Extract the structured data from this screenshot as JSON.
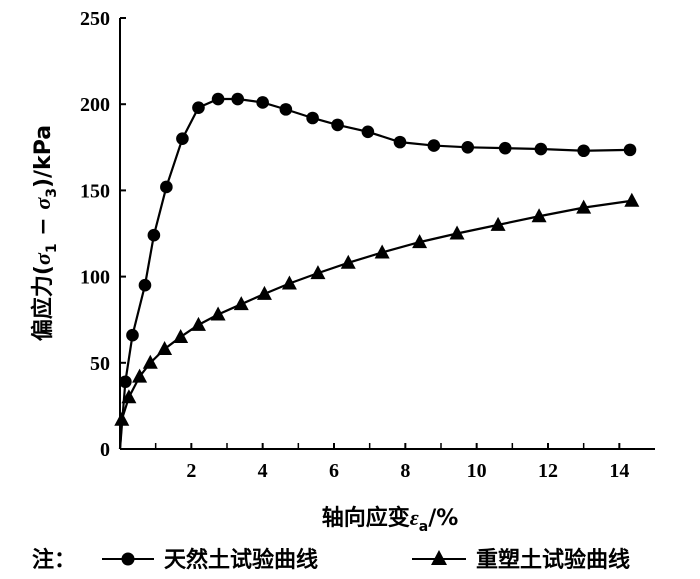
{
  "chart_data": {
    "type": "line",
    "xlabel": "轴向应变ε_a/%",
    "ylabel": "偏应力(σ_1 - σ_3)/kPa",
    "xlim": [
      0,
      15
    ],
    "ylim": [
      0,
      250
    ],
    "x_ticks": [
      "2",
      "4",
      "6",
      "8",
      "10",
      "12",
      "14"
    ],
    "y_ticks": [
      "0",
      "50",
      "100",
      "150",
      "200",
      "250"
    ],
    "grid": false,
    "series": [
      {
        "name": "天然土试验曲线",
        "marker": "circle",
        "color": "#000000",
        "x": [
          0,
          0.15,
          0.35,
          0.7,
          0.95,
          1.3,
          1.75,
          2.2,
          2.75,
          3.3,
          4.0,
          4.65,
          5.4,
          6.1,
          6.95,
          7.85,
          8.8,
          9.75,
          10.8,
          11.8,
          13.0,
          14.3
        ],
        "y": [
          0,
          39,
          66,
          95,
          124,
          152,
          180,
          198,
          203,
          203,
          201,
          197,
          192,
          188,
          184,
          178,
          176,
          175,
          174.5,
          174,
          173,
          173.5
        ]
      },
      {
        "name": "重塑土试验曲线",
        "marker": "triangle",
        "color": "#000000",
        "x": [
          0,
          0.05,
          0.25,
          0.55,
          0.85,
          1.25,
          1.7,
          2.2,
          2.75,
          3.4,
          4.05,
          4.75,
          5.55,
          6.4,
          7.35,
          8.4,
          9.45,
          10.6,
          11.75,
          13.0,
          14.35
        ],
        "y": [
          0,
          17,
          30,
          42,
          50,
          58,
          65,
          72,
          78,
          84,
          90,
          96,
          102,
          108,
          114,
          120,
          125,
          130,
          135,
          140,
          144
        ]
      }
    ]
  },
  "legend": {
    "prefix": "注：",
    "items": [
      "天然土试验曲线",
      "重塑土试验曲线"
    ]
  }
}
